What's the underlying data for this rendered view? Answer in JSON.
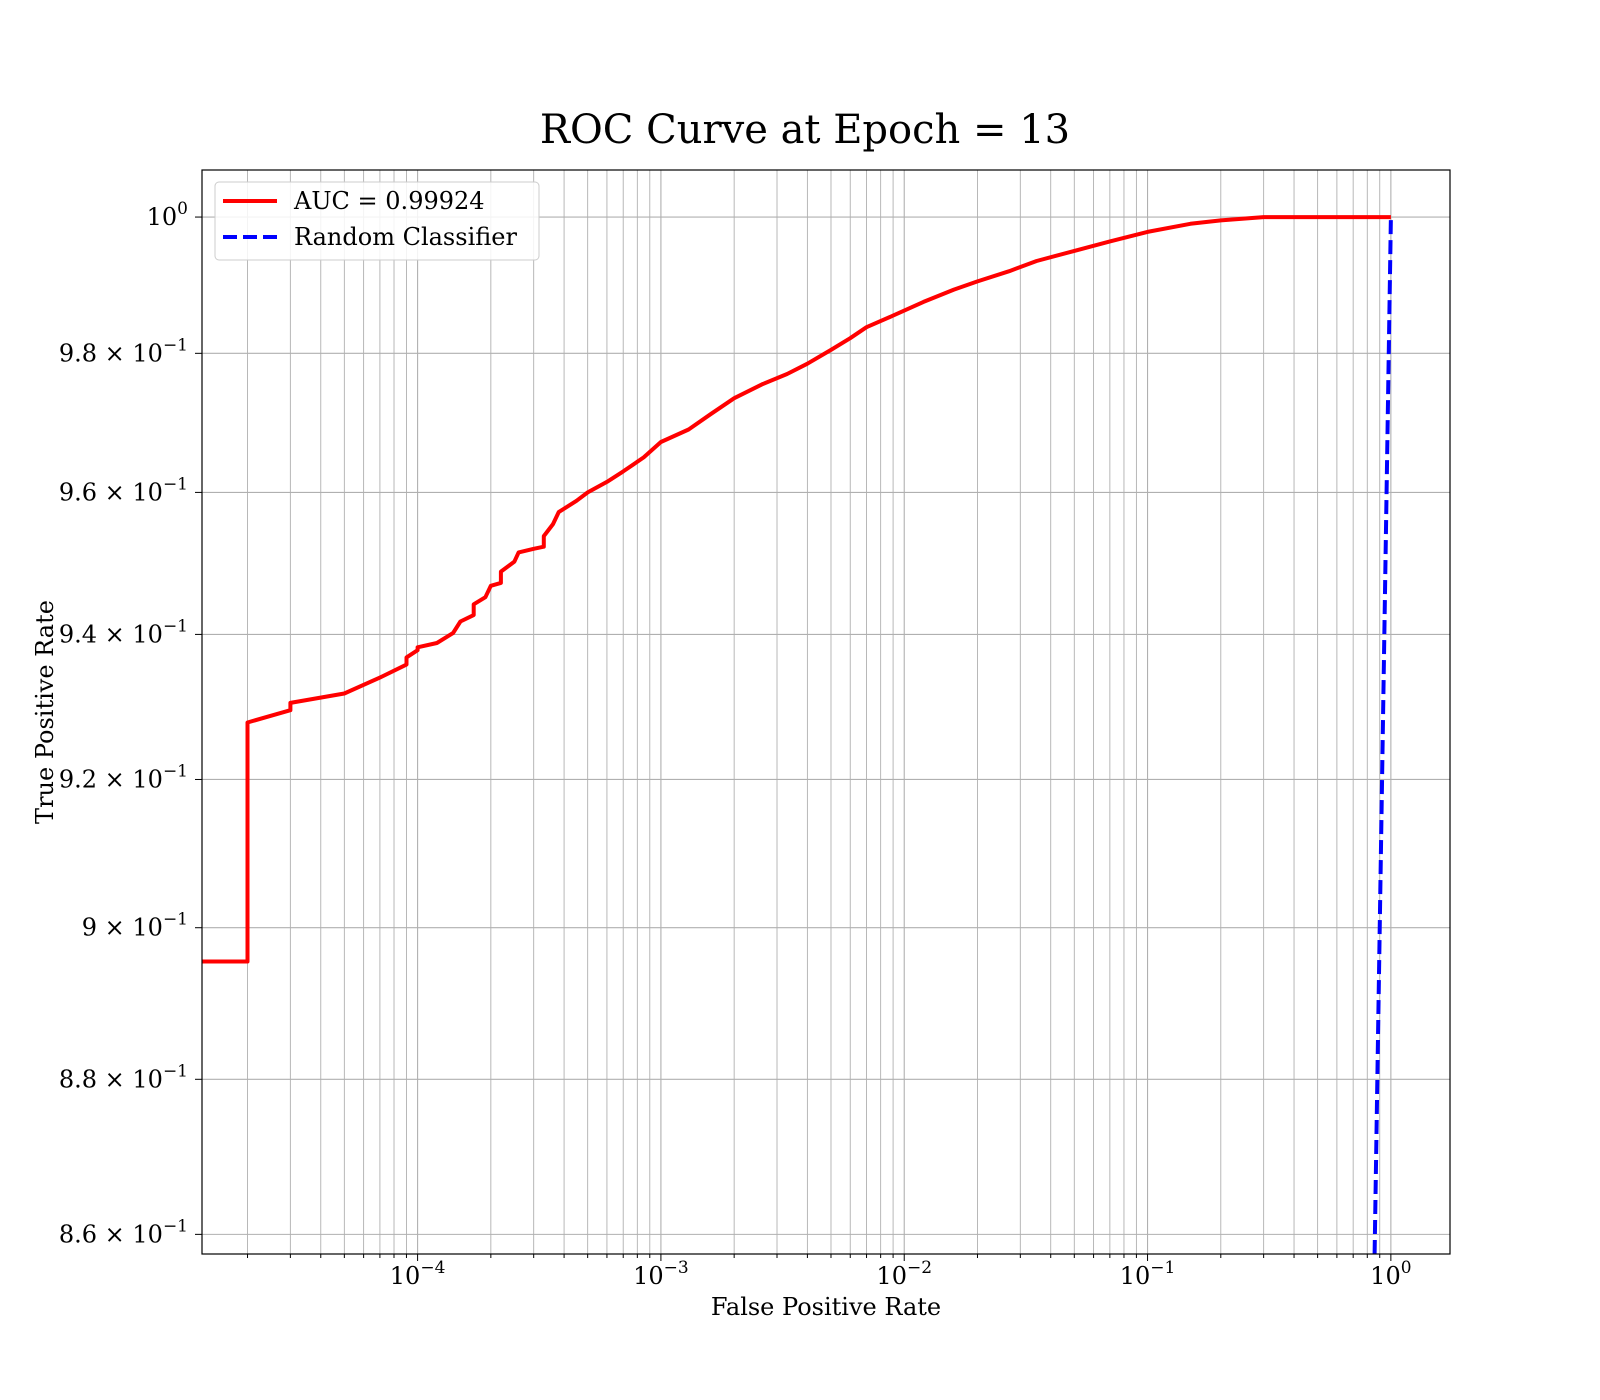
{
  "chart_data": {
    "type": "line",
    "title": "ROC Curve at Epoch = 13",
    "xlabel": "False Positive Rate",
    "ylabel": "True Positive Rate",
    "xscale": "log",
    "yscale": "log",
    "xlim": [
      1.3e-05,
      1.75
    ],
    "ylim": [
      0.8575,
      1.007
    ],
    "grid": true,
    "legend_position": "upper-left",
    "x_ticks": [
      {
        "value": 0.0001,
        "mantissa": "10",
        "exponent": "−4"
      },
      {
        "value": 0.001,
        "mantissa": "10",
        "exponent": "−3"
      },
      {
        "value": 0.01,
        "mantissa": "10",
        "exponent": "−2"
      },
      {
        "value": 0.1,
        "mantissa": "10",
        "exponent": "−1"
      },
      {
        "value": 1,
        "mantissa": "10",
        "exponent": "0"
      }
    ],
    "y_ticks": [
      {
        "value": 1.0,
        "mantissa": "10",
        "exponent": "0"
      },
      {
        "value": 0.98,
        "mantissa": "9.8 × 10",
        "exponent": "−1"
      },
      {
        "value": 0.96,
        "mantissa": "9.6 × 10",
        "exponent": "−1"
      },
      {
        "value": 0.94,
        "mantissa": "9.4 × 10",
        "exponent": "−1"
      },
      {
        "value": 0.92,
        "mantissa": "9.2 × 10",
        "exponent": "−1"
      },
      {
        "value": 0.9,
        "mantissa": "9 × 10",
        "exponent": "−1"
      },
      {
        "value": 0.88,
        "mantissa": "8.8 × 10",
        "exponent": "−1"
      },
      {
        "value": 0.86,
        "mantissa": "8.6 × 10",
        "exponent": "−1"
      }
    ],
    "series": [
      {
        "name": "AUC = 0.99924",
        "color": "#ff0000",
        "style": "solid",
        "points": [
          [
            1.3e-05,
            0.8955
          ],
          [
            2e-05,
            0.8955
          ],
          [
            2e-05,
            0.9278
          ],
          [
            3e-05,
            0.9295
          ],
          [
            3e-05,
            0.9305
          ],
          [
            5e-05,
            0.9318
          ],
          [
            7e-05,
            0.934
          ],
          [
            9e-05,
            0.9358
          ],
          [
            9e-05,
            0.9368
          ],
          [
            0.0001,
            0.9378
          ],
          [
            0.0001,
            0.9382
          ],
          [
            0.00012,
            0.9388
          ],
          [
            0.00014,
            0.9402
          ],
          [
            0.00015,
            0.9418
          ],
          [
            0.00017,
            0.9427
          ],
          [
            0.00017,
            0.9442
          ],
          [
            0.00019,
            0.9452
          ],
          [
            0.0002,
            0.9468
          ],
          [
            0.00022,
            0.9472
          ],
          [
            0.00022,
            0.9488
          ],
          [
            0.00025,
            0.9502
          ],
          [
            0.00026,
            0.9515
          ],
          [
            0.0003,
            0.952
          ],
          [
            0.00033,
            0.9523
          ],
          [
            0.00033,
            0.9538
          ],
          [
            0.00036,
            0.9555
          ],
          [
            0.00038,
            0.9572
          ],
          [
            0.00045,
            0.9588
          ],
          [
            0.0005,
            0.96
          ],
          [
            0.0006,
            0.9615
          ],
          [
            0.0007,
            0.963
          ],
          [
            0.00085,
            0.965
          ],
          [
            0.001,
            0.9672
          ],
          [
            0.0013,
            0.969
          ],
          [
            0.0016,
            0.9712
          ],
          [
            0.002,
            0.9735
          ],
          [
            0.0026,
            0.9755
          ],
          [
            0.0033,
            0.977
          ],
          [
            0.004,
            0.9785
          ],
          [
            0.005,
            0.9805
          ],
          [
            0.006,
            0.9822
          ],
          [
            0.007,
            0.9838
          ],
          [
            0.009,
            0.9855
          ],
          [
            0.012,
            0.9875
          ],
          [
            0.016,
            0.9893
          ],
          [
            0.02,
            0.9905
          ],
          [
            0.027,
            0.992
          ],
          [
            0.035,
            0.9935
          ],
          [
            0.05,
            0.995
          ],
          [
            0.07,
            0.9964
          ],
          [
            0.1,
            0.9978
          ],
          [
            0.15,
            0.999
          ],
          [
            0.2,
            0.9995
          ],
          [
            0.3,
            1.0
          ],
          [
            1.0,
            1.0
          ]
        ]
      },
      {
        "name": "Random Classifier",
        "color": "#0000ff",
        "style": "dashed",
        "points": [
          [
            0.8575,
            0.8575
          ],
          [
            1.0,
            1.0
          ]
        ]
      }
    ]
  }
}
